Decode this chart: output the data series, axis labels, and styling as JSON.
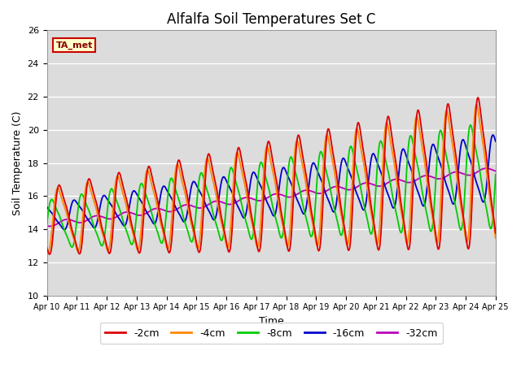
{
  "title": "Alfalfa Soil Temperatures Set C",
  "xlabel": "Time",
  "ylabel": "Soil Temperature (C)",
  "ylim": [
    10,
    26
  ],
  "xlim": [
    0,
    15
  ],
  "bg_color": "#dcdcdc",
  "fig_color": "#ffffff",
  "annotation_text": "TA_met",
  "annotation_bg": "#ffffcc",
  "annotation_border": "#cc0000",
  "legend_entries": [
    "-2cm",
    "-4cm",
    "-8cm",
    "-16cm",
    "-32cm"
  ],
  "line_colors": [
    "#dd0000",
    "#ff8800",
    "#00cc00",
    "#0000cc",
    "#bb00bb"
  ],
  "xtick_labels": [
    "Apr 10",
    "Apr 11",
    "Apr 12",
    "Apr 13",
    "Apr 14",
    "Apr 15",
    "Apr 16",
    "Apr 17",
    "Apr 18",
    "Apr 19",
    "Apr 20",
    "Apr 21",
    "Apr 22",
    "Apr 23",
    "Apr 24",
    "Apr 25"
  ],
  "ytick_values": [
    10,
    12,
    14,
    16,
    18,
    20,
    22,
    24,
    26
  ],
  "num_points": 721
}
